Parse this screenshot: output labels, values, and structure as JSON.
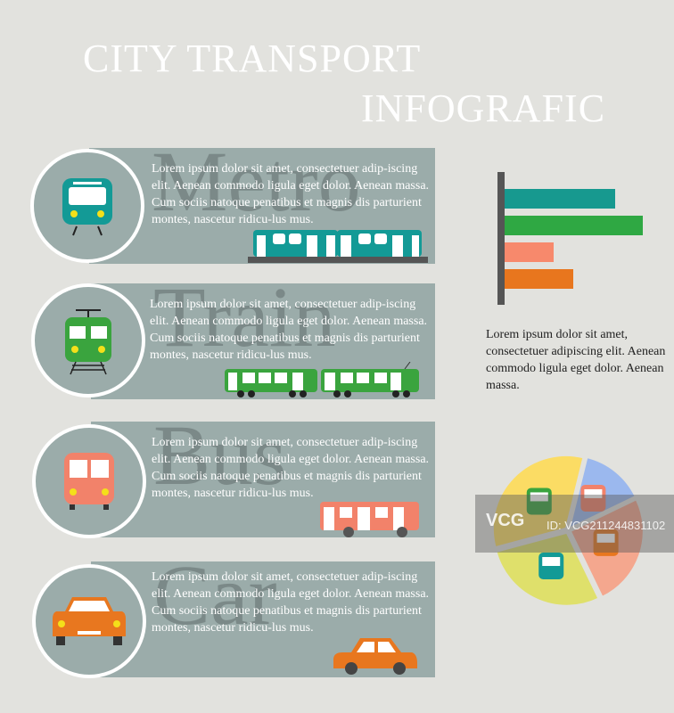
{
  "title": {
    "line1": "CITY TRANSPORT",
    "line2": "INFOGRAFIC"
  },
  "panels": [
    {
      "label": "Metro",
      "text": "Lorem ipsum dolor sit amet, consectetuer adip-iscing elit. Aenean commodo ligula eget dolor. Aenean massa. Cum sociis natoque penatibus et magnis dis parturient montes, nascetur ridicu-lus mus.",
      "icon": "metro-icon",
      "color": "#139a96"
    },
    {
      "label": "Train",
      "text": "Lorem ipsum dolor sit amet, consectetuer adip-iscing elit. Aenean commodo ligula eget dolor. Aenean massa. Cum sociis natoque penatibus et magnis dis parturient montes, nascetur ridicu-lus mus.",
      "icon": "train-icon",
      "color": "#3aa43e"
    },
    {
      "label": "Bus",
      "text": "Lorem ipsum dolor sit amet, consectetuer adip-iscing elit. Aenean commodo ligula eget dolor. Aenean massa. Cum sociis natoque penatibus et magnis dis parturient montes, nascetur ridicu-lus mus.",
      "icon": "bus-icon",
      "color": "#f2826a"
    },
    {
      "label": "Car",
      "text": "Lorem ipsum dolor sit amet, consectetuer adip-iscing elit. Aenean commodo ligula eget dolor. Aenean massa. Cum sociis natoque penatibus et magnis dis parturient montes, nascetur ridicu-lus mus.",
      "icon": "car-icon",
      "color": "#e8771f"
    }
  ],
  "chart_data": [
    {
      "type": "bar",
      "orientation": "horizontal",
      "values": [
        124,
        155,
        55,
        77
      ],
      "colors": [
        "#17998f",
        "#2fa843",
        "#f7896c",
        "#e8761e"
      ]
    },
    {
      "type": "pie",
      "values": [
        33,
        14,
        25,
        28
      ],
      "icons": [
        "train-icon",
        "bus-icon",
        "car-icon",
        "metro-icon"
      ],
      "colors": [
        "#fbdc64",
        "#9bb8ee",
        "#f4a78e",
        "#dfe06b"
      ]
    }
  ],
  "side_text": "Lorem ipsum dolor sit amet, consectetuer adipiscing elit. Aenean commodo ligula eget dolor. Aenean massa.",
  "watermark": {
    "brand": "VCG",
    "id": "ID: VCG211244831102"
  }
}
